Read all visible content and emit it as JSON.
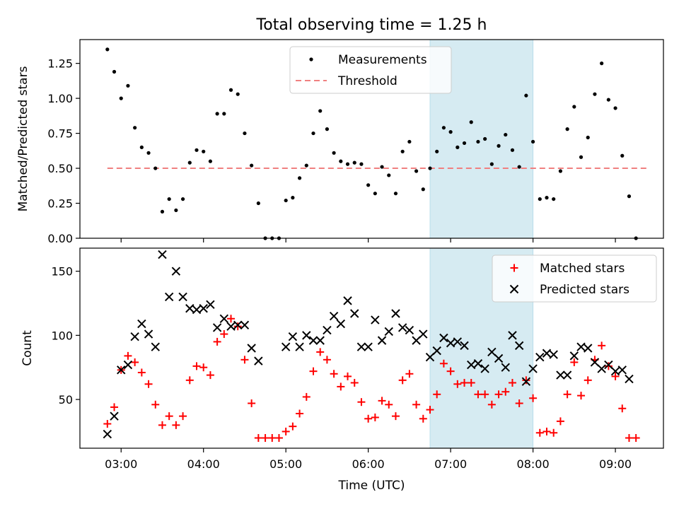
{
  "colors": {
    "measurement": "#000000",
    "threshold": "#f08080",
    "matched": "#ff0000",
    "predicted": "#000000",
    "shade": "#add8e6"
  },
  "chart_data": [
    {
      "type": "scatter",
      "title": "Total observing time = 1.25 h",
      "xlabel": "",
      "ylabel": "Matched/Predicted stars",
      "xlim": [
        "02:30",
        "09:35"
      ],
      "ylim": [
        0,
        1.42
      ],
      "yticks": [
        "0.00",
        "0.25",
        "0.50",
        "0.75",
        "1.00",
        "1.25"
      ],
      "shaded_region": {
        "start": "06:45",
        "end": "08:00"
      },
      "legend": {
        "position": "top-center",
        "entries": [
          "Measurements",
          "Threshold"
        ]
      },
      "threshold": {
        "name": "Threshold",
        "value": 0.5,
        "x_start": "02:50",
        "x_end": "09:25"
      },
      "series": [
        {
          "name": "Measurements",
          "points": [
            [
              "02:50",
              1.35
            ],
            [
              "02:55",
              1.19
            ],
            [
              "03:00",
              1.0
            ],
            [
              "03:05",
              1.09
            ],
            [
              "03:10",
              0.79
            ],
            [
              "03:15",
              0.65
            ],
            [
              "03:20",
              0.61
            ],
            [
              "03:25",
              0.5
            ],
            [
              "03:30",
              0.19
            ],
            [
              "03:35",
              0.28
            ],
            [
              "03:40",
              0.2
            ],
            [
              "03:45",
              0.28
            ],
            [
              "03:50",
              0.54
            ],
            [
              "03:55",
              0.63
            ],
            [
              "04:00",
              0.62
            ],
            [
              "04:05",
              0.55
            ],
            [
              "04:10",
              0.89
            ],
            [
              "04:15",
              0.89
            ],
            [
              "04:20",
              1.06
            ],
            [
              "04:25",
              1.03
            ],
            [
              "04:30",
              0.75
            ],
            [
              "04:35",
              0.52
            ],
            [
              "04:40",
              0.25
            ],
            [
              "04:45",
              0.0
            ],
            [
              "04:50",
              0.0
            ],
            [
              "04:55",
              0.0
            ],
            [
              "05:00",
              0.27
            ],
            [
              "05:05",
              0.29
            ],
            [
              "05:10",
              0.43
            ],
            [
              "05:15",
              0.52
            ],
            [
              "05:20",
              0.75
            ],
            [
              "05:25",
              0.91
            ],
            [
              "05:30",
              0.78
            ],
            [
              "05:35",
              0.61
            ],
            [
              "05:40",
              0.55
            ],
            [
              "05:45",
              0.53
            ],
            [
              "05:50",
              0.54
            ],
            [
              "05:55",
              0.53
            ],
            [
              "06:00",
              0.38
            ],
            [
              "06:05",
              0.32
            ],
            [
              "06:10",
              0.51
            ],
            [
              "06:15",
              0.45
            ],
            [
              "06:20",
              0.32
            ],
            [
              "06:25",
              0.62
            ],
            [
              "06:30",
              0.69
            ],
            [
              "06:35",
              0.48
            ],
            [
              "06:40",
              0.35
            ],
            [
              "06:45",
              0.5
            ],
            [
              "06:50",
              0.62
            ],
            [
              "06:55",
              0.79
            ],
            [
              "07:00",
              0.76
            ],
            [
              "07:05",
              0.65
            ],
            [
              "07:10",
              0.68
            ],
            [
              "07:15",
              0.83
            ],
            [
              "07:20",
              0.69
            ],
            [
              "07:25",
              0.71
            ],
            [
              "07:30",
              0.53
            ],
            [
              "07:35",
              0.66
            ],
            [
              "07:40",
              0.74
            ],
            [
              "07:45",
              0.63
            ],
            [
              "07:50",
              0.51
            ],
            [
              "07:55",
              1.02
            ],
            [
              "08:00",
              0.69
            ],
            [
              "08:05",
              0.28
            ],
            [
              "08:10",
              0.29
            ],
            [
              "08:15",
              0.28
            ],
            [
              "08:20",
              0.48
            ],
            [
              "08:25",
              0.78
            ],
            [
              "08:30",
              0.94
            ],
            [
              "08:35",
              0.58
            ],
            [
              "08:40",
              0.72
            ],
            [
              "08:45",
              1.03
            ],
            [
              "08:50",
              1.25
            ],
            [
              "08:55",
              0.99
            ],
            [
              "09:00",
              0.93
            ],
            [
              "09:05",
              0.59
            ],
            [
              "09:10",
              0.3
            ],
            [
              "09:15",
              0.0
            ]
          ]
        }
      ]
    },
    {
      "type": "scatter",
      "title": "",
      "xlabel": "Time (UTC)",
      "ylabel": "Count",
      "xlim": [
        "02:30",
        "09:35"
      ],
      "ylim": [
        12,
        168
      ],
      "yticks": [
        "50",
        "100",
        "150"
      ],
      "xticks": [
        "03:00",
        "04:00",
        "05:00",
        "06:00",
        "07:00",
        "08:00",
        "09:00"
      ],
      "shaded_region": {
        "start": "06:45",
        "end": "08:00"
      },
      "legend": {
        "position": "top-right",
        "entries": [
          "Matched stars",
          "Predicted stars"
        ]
      },
      "series": [
        {
          "name": "Matched stars",
          "marker": "plus",
          "points": [
            [
              "02:50",
              31
            ],
            [
              "02:55",
              44
            ],
            [
              "03:00",
              73
            ],
            [
              "03:05",
              84
            ],
            [
              "03:10",
              79
            ],
            [
              "03:15",
              71
            ],
            [
              "03:20",
              62
            ],
            [
              "03:25",
              46
            ],
            [
              "03:30",
              30
            ],
            [
              "03:35",
              37
            ],
            [
              "03:40",
              30
            ],
            [
              "03:45",
              37
            ],
            [
              "03:50",
              65
            ],
            [
              "03:55",
              76
            ],
            [
              "04:00",
              75
            ],
            [
              "04:05",
              69
            ],
            [
              "04:10",
              95
            ],
            [
              "04:15",
              101
            ],
            [
              "04:20",
              113
            ],
            [
              "04:25",
              107
            ],
            [
              "04:30",
              81
            ],
            [
              "04:35",
              47
            ],
            [
              "04:40",
              20
            ],
            [
              "04:45",
              20
            ],
            [
              "04:50",
              20
            ],
            [
              "04:55",
              20
            ],
            [
              "05:00",
              25
            ],
            [
              "05:05",
              29
            ],
            [
              "05:10",
              39
            ],
            [
              "05:15",
              52
            ],
            [
              "05:20",
              72
            ],
            [
              "05:25",
              87
            ],
            [
              "05:30",
              81
            ],
            [
              "05:35",
              70
            ],
            [
              "05:40",
              60
            ],
            [
              "05:45",
              68
            ],
            [
              "05:50",
              63
            ],
            [
              "05:55",
              48
            ],
            [
              "06:00",
              35
            ],
            [
              "06:05",
              36
            ],
            [
              "06:10",
              49
            ],
            [
              "06:15",
              46
            ],
            [
              "06:20",
              37
            ],
            [
              "06:25",
              65
            ],
            [
              "06:30",
              70
            ],
            [
              "06:35",
              46
            ],
            [
              "06:40",
              35
            ],
            [
              "06:45",
              42
            ],
            [
              "06:50",
              54
            ],
            [
              "06:55",
              78
            ],
            [
              "07:00",
              72
            ],
            [
              "07:05",
              62
            ],
            [
              "07:10",
              63
            ],
            [
              "07:15",
              63
            ],
            [
              "07:20",
              54
            ],
            [
              "07:25",
              54
            ],
            [
              "07:30",
              46
            ],
            [
              "07:35",
              54
            ],
            [
              "07:40",
              56
            ],
            [
              "07:45",
              63
            ],
            [
              "07:50",
              47
            ],
            [
              "07:55",
              65
            ],
            [
              "08:00",
              51
            ],
            [
              "08:05",
              24
            ],
            [
              "08:10",
              25
            ],
            [
              "08:15",
              24
            ],
            [
              "08:20",
              33
            ],
            [
              "08:25",
              54
            ],
            [
              "08:30",
              79
            ],
            [
              "08:35",
              53
            ],
            [
              "08:40",
              65
            ],
            [
              "08:45",
              81
            ],
            [
              "08:50",
              92
            ],
            [
              "08:55",
              76
            ],
            [
              "09:00",
              68
            ],
            [
              "09:05",
              43
            ],
            [
              "09:10",
              20
            ],
            [
              "09:15",
              20
            ]
          ]
        },
        {
          "name": "Predicted stars",
          "marker": "x",
          "points": [
            [
              "02:50",
              23
            ],
            [
              "02:55",
              37
            ],
            [
              "03:00",
              73
            ],
            [
              "03:05",
              77
            ],
            [
              "03:10",
              99
            ],
            [
              "03:15",
              109
            ],
            [
              "03:20",
              101
            ],
            [
              "03:25",
              91
            ],
            [
              "03:30",
              163
            ],
            [
              "03:35",
              130
            ],
            [
              "03:40",
              150
            ],
            [
              "03:45",
              130
            ],
            [
              "03:50",
              121
            ],
            [
              "03:55",
              120
            ],
            [
              "04:00",
              121
            ],
            [
              "04:05",
              124
            ],
            [
              "04:10",
              106
            ],
            [
              "04:15",
              113
            ],
            [
              "04:20",
              107
            ],
            [
              "04:25",
              108
            ],
            [
              "04:30",
              108
            ],
            [
              "04:35",
              90
            ],
            [
              "04:40",
              80
            ],
            [
              "05:00",
              91
            ],
            [
              "05:05",
              99
            ],
            [
              "05:10",
              91
            ],
            [
              "05:15",
              100
            ],
            [
              "05:20",
              96
            ],
            [
              "05:25",
              96
            ],
            [
              "05:30",
              104
            ],
            [
              "05:35",
              115
            ],
            [
              "05:40",
              109
            ],
            [
              "05:45",
              127
            ],
            [
              "05:50",
              117
            ],
            [
              "05:55",
              91
            ],
            [
              "06:00",
              91
            ],
            [
              "06:05",
              112
            ],
            [
              "06:10",
              96
            ],
            [
              "06:15",
              103
            ],
            [
              "06:20",
              117
            ],
            [
              "06:25",
              106
            ],
            [
              "06:30",
              104
            ],
            [
              "06:35",
              96
            ],
            [
              "06:40",
              101
            ],
            [
              "06:45",
              83
            ],
            [
              "06:50",
              88
            ],
            [
              "06:55",
              98
            ],
            [
              "07:00",
              94
            ],
            [
              "07:05",
              95
            ],
            [
              "07:10",
              92
            ],
            [
              "07:15",
              77
            ],
            [
              "07:20",
              78
            ],
            [
              "07:25",
              74
            ],
            [
              "07:30",
              87
            ],
            [
              "07:35",
              82
            ],
            [
              "07:40",
              75
            ],
            [
              "07:45",
              100
            ],
            [
              "07:50",
              92
            ],
            [
              "07:55",
              64
            ],
            [
              "08:00",
              74
            ],
            [
              "08:05",
              83
            ],
            [
              "08:10",
              86
            ],
            [
              "08:15",
              85
            ],
            [
              "08:20",
              69
            ],
            [
              "08:25",
              69
            ],
            [
              "08:30",
              84
            ],
            [
              "08:35",
              91
            ],
            [
              "08:40",
              90
            ],
            [
              "08:45",
              79
            ],
            [
              "08:50",
              74
            ],
            [
              "08:55",
              77
            ],
            [
              "09:00",
              72
            ],
            [
              "09:05",
              73
            ],
            [
              "09:10",
              66
            ]
          ]
        }
      ]
    }
  ]
}
